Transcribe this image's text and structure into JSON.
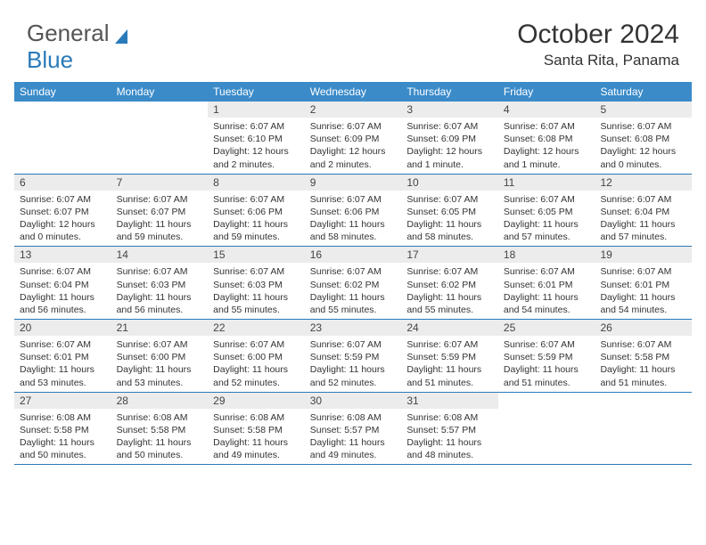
{
  "brand": {
    "part1": "General",
    "part2": "Blue"
  },
  "title": "October 2024",
  "location": "Santa Rita, Panama",
  "colors": {
    "header_bg": "#3b8bc9",
    "accent": "#2a7ab9",
    "daynum_bg": "#ececec",
    "text": "#333333",
    "logo_gray": "#555555"
  },
  "weekdays": [
    "Sunday",
    "Monday",
    "Tuesday",
    "Wednesday",
    "Thursday",
    "Friday",
    "Saturday"
  ],
  "weeks": [
    [
      null,
      null,
      {
        "n": "1",
        "sr": "Sunrise: 6:07 AM",
        "ss": "Sunset: 6:10 PM",
        "dl": "Daylight: 12 hours and 2 minutes."
      },
      {
        "n": "2",
        "sr": "Sunrise: 6:07 AM",
        "ss": "Sunset: 6:09 PM",
        "dl": "Daylight: 12 hours and 2 minutes."
      },
      {
        "n": "3",
        "sr": "Sunrise: 6:07 AM",
        "ss": "Sunset: 6:09 PM",
        "dl": "Daylight: 12 hours and 1 minute."
      },
      {
        "n": "4",
        "sr": "Sunrise: 6:07 AM",
        "ss": "Sunset: 6:08 PM",
        "dl": "Daylight: 12 hours and 1 minute."
      },
      {
        "n": "5",
        "sr": "Sunrise: 6:07 AM",
        "ss": "Sunset: 6:08 PM",
        "dl": "Daylight: 12 hours and 0 minutes."
      }
    ],
    [
      {
        "n": "6",
        "sr": "Sunrise: 6:07 AM",
        "ss": "Sunset: 6:07 PM",
        "dl": "Daylight: 12 hours and 0 minutes."
      },
      {
        "n": "7",
        "sr": "Sunrise: 6:07 AM",
        "ss": "Sunset: 6:07 PM",
        "dl": "Daylight: 11 hours and 59 minutes."
      },
      {
        "n": "8",
        "sr": "Sunrise: 6:07 AM",
        "ss": "Sunset: 6:06 PM",
        "dl": "Daylight: 11 hours and 59 minutes."
      },
      {
        "n": "9",
        "sr": "Sunrise: 6:07 AM",
        "ss": "Sunset: 6:06 PM",
        "dl": "Daylight: 11 hours and 58 minutes."
      },
      {
        "n": "10",
        "sr": "Sunrise: 6:07 AM",
        "ss": "Sunset: 6:05 PM",
        "dl": "Daylight: 11 hours and 58 minutes."
      },
      {
        "n": "11",
        "sr": "Sunrise: 6:07 AM",
        "ss": "Sunset: 6:05 PM",
        "dl": "Daylight: 11 hours and 57 minutes."
      },
      {
        "n": "12",
        "sr": "Sunrise: 6:07 AM",
        "ss": "Sunset: 6:04 PM",
        "dl": "Daylight: 11 hours and 57 minutes."
      }
    ],
    [
      {
        "n": "13",
        "sr": "Sunrise: 6:07 AM",
        "ss": "Sunset: 6:04 PM",
        "dl": "Daylight: 11 hours and 56 minutes."
      },
      {
        "n": "14",
        "sr": "Sunrise: 6:07 AM",
        "ss": "Sunset: 6:03 PM",
        "dl": "Daylight: 11 hours and 56 minutes."
      },
      {
        "n": "15",
        "sr": "Sunrise: 6:07 AM",
        "ss": "Sunset: 6:03 PM",
        "dl": "Daylight: 11 hours and 55 minutes."
      },
      {
        "n": "16",
        "sr": "Sunrise: 6:07 AM",
        "ss": "Sunset: 6:02 PM",
        "dl": "Daylight: 11 hours and 55 minutes."
      },
      {
        "n": "17",
        "sr": "Sunrise: 6:07 AM",
        "ss": "Sunset: 6:02 PM",
        "dl": "Daylight: 11 hours and 55 minutes."
      },
      {
        "n": "18",
        "sr": "Sunrise: 6:07 AM",
        "ss": "Sunset: 6:01 PM",
        "dl": "Daylight: 11 hours and 54 minutes."
      },
      {
        "n": "19",
        "sr": "Sunrise: 6:07 AM",
        "ss": "Sunset: 6:01 PM",
        "dl": "Daylight: 11 hours and 54 minutes."
      }
    ],
    [
      {
        "n": "20",
        "sr": "Sunrise: 6:07 AM",
        "ss": "Sunset: 6:01 PM",
        "dl": "Daylight: 11 hours and 53 minutes."
      },
      {
        "n": "21",
        "sr": "Sunrise: 6:07 AM",
        "ss": "Sunset: 6:00 PM",
        "dl": "Daylight: 11 hours and 53 minutes."
      },
      {
        "n": "22",
        "sr": "Sunrise: 6:07 AM",
        "ss": "Sunset: 6:00 PM",
        "dl": "Daylight: 11 hours and 52 minutes."
      },
      {
        "n": "23",
        "sr": "Sunrise: 6:07 AM",
        "ss": "Sunset: 5:59 PM",
        "dl": "Daylight: 11 hours and 52 minutes."
      },
      {
        "n": "24",
        "sr": "Sunrise: 6:07 AM",
        "ss": "Sunset: 5:59 PM",
        "dl": "Daylight: 11 hours and 51 minutes."
      },
      {
        "n": "25",
        "sr": "Sunrise: 6:07 AM",
        "ss": "Sunset: 5:59 PM",
        "dl": "Daylight: 11 hours and 51 minutes."
      },
      {
        "n": "26",
        "sr": "Sunrise: 6:07 AM",
        "ss": "Sunset: 5:58 PM",
        "dl": "Daylight: 11 hours and 51 minutes."
      }
    ],
    [
      {
        "n": "27",
        "sr": "Sunrise: 6:08 AM",
        "ss": "Sunset: 5:58 PM",
        "dl": "Daylight: 11 hours and 50 minutes."
      },
      {
        "n": "28",
        "sr": "Sunrise: 6:08 AM",
        "ss": "Sunset: 5:58 PM",
        "dl": "Daylight: 11 hours and 50 minutes."
      },
      {
        "n": "29",
        "sr": "Sunrise: 6:08 AM",
        "ss": "Sunset: 5:58 PM",
        "dl": "Daylight: 11 hours and 49 minutes."
      },
      {
        "n": "30",
        "sr": "Sunrise: 6:08 AM",
        "ss": "Sunset: 5:57 PM",
        "dl": "Daylight: 11 hours and 49 minutes."
      },
      {
        "n": "31",
        "sr": "Sunrise: 6:08 AM",
        "ss": "Sunset: 5:57 PM",
        "dl": "Daylight: 11 hours and 48 minutes."
      },
      null,
      null
    ]
  ]
}
